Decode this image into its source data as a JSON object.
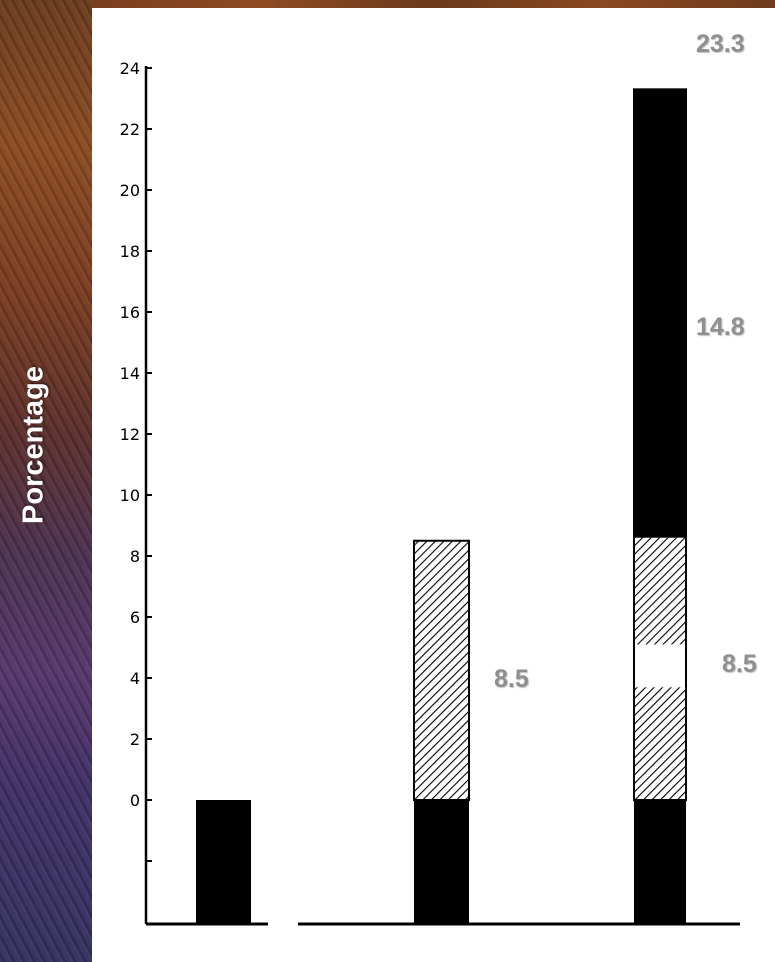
{
  "chart_data": {
    "type": "bar",
    "ylabel": "Porcentage",
    "ylim": [
      0,
      24
    ],
    "yticks": [
      0,
      2,
      4,
      6,
      8,
      10,
      12,
      14,
      16,
      18,
      20,
      22,
      24
    ],
    "ytick_labels": [
      "0",
      "2",
      "4",
      "6",
      "8",
      "10",
      "12",
      "14",
      "16",
      "18",
      "20",
      "22",
      "24"
    ],
    "bars": [
      {
        "segments": [
          {
            "pattern": "solid",
            "from": -3.2,
            "to": 0
          }
        ]
      },
      {
        "segments": [
          {
            "pattern": "solid",
            "from": -3.2,
            "to": 0
          },
          {
            "pattern": "hatched",
            "from": 0,
            "to": 8.5
          }
        ]
      },
      {
        "segments": [
          {
            "pattern": "solid",
            "from": -3.2,
            "to": 0
          },
          {
            "pattern": "hatched",
            "from": 0,
            "to": 3.7
          },
          {
            "pattern": "white",
            "from": 3.7,
            "to": 5.1
          },
          {
            "pattern": "hatched",
            "from": 5.1,
            "to": 8.6
          },
          {
            "pattern": "solid",
            "from": 8.6,
            "to": 23.3
          }
        ]
      }
    ],
    "annotations": [
      "23.3",
      "14.8",
      "8.5",
      "8.5"
    ]
  },
  "colors": {
    "background_top": "#7a3f1e",
    "background_bottom": "#33305e",
    "annotation": "#8f8f8f",
    "y_title": "#ffffff"
  }
}
